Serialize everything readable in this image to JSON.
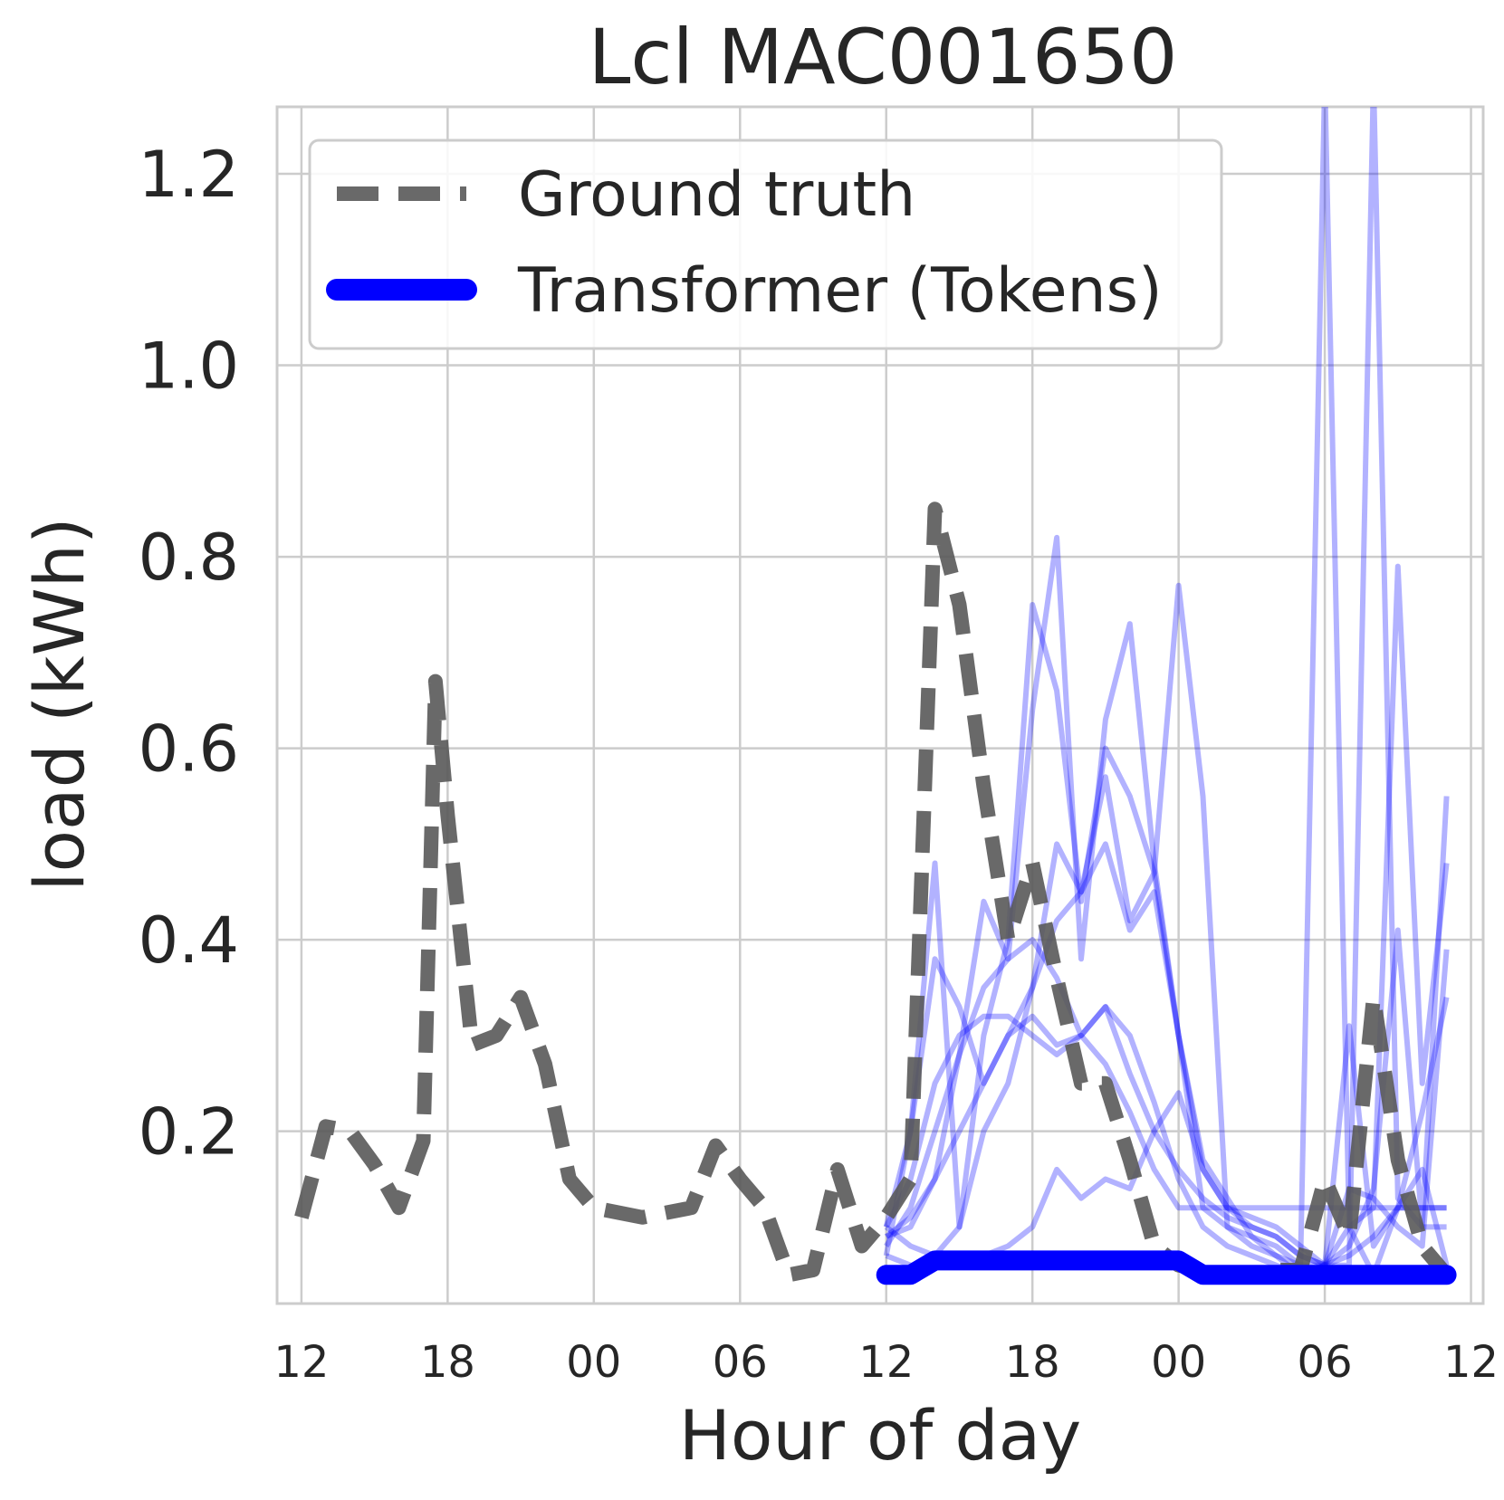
{
  "chart_data": {
    "type": "line",
    "title": "Lcl MAC001650",
    "xlabel": "Hour of day",
    "ylabel": "load (kWh)",
    "xlim": [
      -1,
      48.5
    ],
    "ylim": [
      0.02,
      1.27
    ],
    "x_ticks": [
      0,
      6,
      12,
      18,
      24,
      30,
      36,
      42,
      48
    ],
    "x_tick_labels": [
      "12",
      "18",
      "00",
      "06",
      "12",
      "18",
      "00",
      "06",
      "12"
    ],
    "y_ticks": [
      0.2,
      0.4,
      0.6,
      0.8,
      1.0,
      1.2
    ],
    "y_tick_labels": [
      "0.2",
      "0.4",
      "0.6",
      "0.8",
      "1.0",
      "1.2"
    ],
    "grid": true,
    "legend_position": "top-left",
    "colors": {
      "ground_truth": "#595959",
      "transformer": "#0000ff",
      "grid": "#cccccc"
    },
    "legend": [
      {
        "label": "Ground truth",
        "style": "dashed",
        "color": "#595959"
      },
      {
        "label": "Transformer (Tokens)",
        "style": "solid",
        "color": "#0000ff"
      }
    ],
    "series": [
      {
        "name": "Ground truth",
        "style": "dashed",
        "x": [
          0,
          1,
          2,
          3,
          4,
          5,
          5.5,
          6,
          7,
          8,
          9,
          10,
          11,
          12,
          13,
          14,
          15,
          16,
          17,
          18,
          19,
          20,
          21,
          22,
          23,
          24,
          25,
          26,
          27,
          28,
          29,
          30,
          31,
          32,
          33,
          34,
          35,
          36,
          37,
          38,
          39,
          40,
          41,
          42,
          43,
          44,
          45,
          46,
          47
        ],
        "y": [
          0.11,
          0.205,
          0.2,
          0.165,
          0.12,
          0.19,
          0.67,
          0.53,
          0.29,
          0.3,
          0.34,
          0.27,
          0.15,
          0.12,
          0.115,
          0.11,
          0.115,
          0.12,
          0.185,
          0.15,
          0.12,
          0.05,
          0.055,
          0.16,
          0.08,
          0.11,
          0.15,
          0.85,
          0.75,
          0.56,
          0.4,
          0.48,
          0.36,
          0.25,
          0.25,
          0.17,
          0.08,
          0.06,
          0.055,
          0.05,
          0.05,
          0.055,
          0.055,
          0.15,
          0.09,
          0.34,
          0.17,
          0.08,
          0.05
        ]
      },
      {
        "name": "Transformer (Tokens)",
        "style": "solid-thick",
        "x": [
          24,
          25,
          26,
          27,
          28,
          29,
          30,
          31,
          32,
          33,
          34,
          35,
          36,
          37,
          38,
          39,
          40,
          41,
          42,
          43,
          44,
          45,
          46,
          47
        ],
        "y": [
          0.05,
          0.05,
          0.065,
          0.065,
          0.065,
          0.065,
          0.065,
          0.065,
          0.065,
          0.065,
          0.065,
          0.065,
          0.065,
          0.05,
          0.05,
          0.05,
          0.05,
          0.05,
          0.05,
          0.05,
          0.05,
          0.05,
          0.05,
          0.05
        ]
      }
    ],
    "samples": [
      {
        "x": [
          24,
          25,
          26,
          27,
          28,
          29,
          30,
          31,
          32,
          33,
          34,
          35,
          36,
          37,
          38,
          39,
          40,
          41,
          42,
          43,
          44,
          45,
          46,
          47
        ],
        "y": [
          0.1,
          0.2,
          0.48,
          0.1,
          0.3,
          0.4,
          0.75,
          0.66,
          0.44,
          0.6,
          0.55,
          0.47,
          0.3,
          0.12,
          0.1,
          0.09,
          0.08,
          0.06,
          1.3,
          0.1,
          0.05,
          0.12,
          0.12,
          0.12
        ]
      },
      {
        "x": [
          24,
          25,
          26,
          27,
          28,
          29,
          30,
          31,
          32,
          33,
          34,
          35,
          36,
          37,
          38,
          39,
          40,
          41,
          42,
          43,
          44,
          45,
          46,
          47
        ],
        "y": [
          0.07,
          0.2,
          0.38,
          0.33,
          0.25,
          0.3,
          0.35,
          0.5,
          0.45,
          0.57,
          0.42,
          0.47,
          0.77,
          0.55,
          0.1,
          0.08,
          0.07,
          0.06,
          0.06,
          0.06,
          1.3,
          0.13,
          0.1,
          0.1
        ]
      },
      {
        "x": [
          24,
          25,
          26,
          27,
          28,
          29,
          30,
          31,
          32,
          33,
          34,
          35,
          36,
          37,
          38,
          39,
          40,
          41,
          42,
          43,
          44,
          45,
          46,
          47
        ],
        "y": [
          0.09,
          0.1,
          0.15,
          0.28,
          0.44,
          0.38,
          0.64,
          0.82,
          0.38,
          0.63,
          0.73,
          0.48,
          0.3,
          0.17,
          0.13,
          0.09,
          0.07,
          0.05,
          0.06,
          0.1,
          0.12,
          0.79,
          0.25,
          0.48
        ]
      },
      {
        "x": [
          24,
          25,
          26,
          27,
          28,
          29,
          30,
          31,
          32,
          33,
          34,
          35,
          36,
          37,
          38,
          39,
          40,
          41,
          42,
          43,
          44,
          45,
          46,
          47
        ],
        "y": [
          0.1,
          0.15,
          0.25,
          0.3,
          0.32,
          0.32,
          0.3,
          0.28,
          0.3,
          0.27,
          0.22,
          0.16,
          0.12,
          0.12,
          0.12,
          0.12,
          0.12,
          0.12,
          0.12,
          0.12,
          0.12,
          0.12,
          0.12,
          0.12
        ]
      },
      {
        "x": [
          24,
          25,
          26,
          27,
          28,
          29,
          30,
          31,
          32,
          33,
          34,
          35,
          36,
          37,
          38,
          39,
          40,
          41,
          42,
          43,
          44,
          45,
          46,
          47
        ],
        "y": [
          0.08,
          0.12,
          0.2,
          0.28,
          0.35,
          0.38,
          0.4,
          0.36,
          0.3,
          0.33,
          0.26,
          0.2,
          0.16,
          0.13,
          0.11,
          0.1,
          0.09,
          0.07,
          0.06,
          0.08,
          0.14,
          0.41,
          0.1,
          0.55
        ]
      },
      {
        "x": [
          24,
          25,
          26,
          27,
          28,
          29,
          30,
          31,
          32,
          33,
          34,
          35,
          36,
          37,
          38,
          39,
          40,
          41,
          42,
          43,
          44,
          45,
          46,
          47
        ],
        "y": [
          0.09,
          0.11,
          0.15,
          0.2,
          0.25,
          0.3,
          0.32,
          0.29,
          0.3,
          0.33,
          0.3,
          0.23,
          0.15,
          0.1,
          0.08,
          0.07,
          0.06,
          0.05,
          0.06,
          0.31,
          0.08,
          0.12,
          0.16,
          0.06
        ]
      },
      {
        "x": [
          24,
          25,
          26,
          27,
          28,
          29,
          30,
          31,
          32,
          33,
          34,
          35,
          36,
          37,
          38,
          39,
          40,
          41,
          42,
          43,
          44,
          45,
          46,
          47
        ],
        "y": [
          0.1,
          0.08,
          0.07,
          0.1,
          0.2,
          0.25,
          0.35,
          0.42,
          0.45,
          0.5,
          0.41,
          0.45,
          0.3,
          0.16,
          0.12,
          0.11,
          0.1,
          0.08,
          0.06,
          0.07,
          0.09,
          0.12,
          0.22,
          0.34
        ]
      },
      {
        "x": [
          24,
          25,
          26,
          27,
          28,
          29,
          30,
          31,
          32,
          33,
          34,
          35,
          36,
          37,
          38,
          39,
          40,
          41,
          42,
          43,
          44,
          45,
          46,
          47
        ],
        "y": [
          0.07,
          0.06,
          0.06,
          0.07,
          0.07,
          0.08,
          0.1,
          0.16,
          0.13,
          0.15,
          0.14,
          0.2,
          0.24,
          0.16,
          0.12,
          0.1,
          0.09,
          0.07,
          0.06,
          0.14,
          0.13,
          0.1,
          0.08,
          0.39
        ]
      }
    ]
  }
}
